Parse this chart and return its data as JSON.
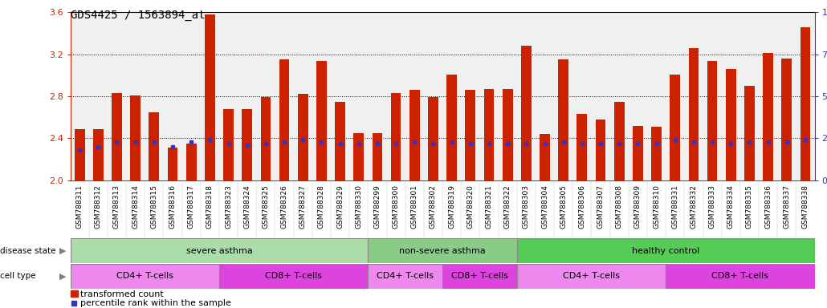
{
  "title": "GDS4425 / 1563894_at",
  "samples": [
    "GSM788311",
    "GSM788312",
    "GSM788313",
    "GSM788314",
    "GSM788315",
    "GSM788316",
    "GSM788317",
    "GSM788318",
    "GSM788323",
    "GSM788324",
    "GSM788325",
    "GSM788326",
    "GSM788327",
    "GSM788328",
    "GSM788329",
    "GSM788330",
    "GSM788299",
    "GSM788300",
    "GSM788301",
    "GSM788302",
    "GSM788319",
    "GSM788320",
    "GSM788321",
    "GSM788322",
    "GSM788303",
    "GSM788304",
    "GSM788305",
    "GSM788306",
    "GSM788307",
    "GSM788308",
    "GSM788309",
    "GSM788310",
    "GSM788331",
    "GSM788332",
    "GSM788333",
    "GSM788334",
    "GSM788335",
    "GSM788336",
    "GSM788337",
    "GSM788338"
  ],
  "transformed_count": [
    2.49,
    2.49,
    2.83,
    2.81,
    2.65,
    2.31,
    2.35,
    3.58,
    2.68,
    2.68,
    2.79,
    3.15,
    2.82,
    3.14,
    2.75,
    2.45,
    2.45,
    2.83,
    2.86,
    2.79,
    3.01,
    2.86,
    2.87,
    2.87,
    3.28,
    2.44,
    3.15,
    2.63,
    2.58,
    2.75,
    2.52,
    2.51,
    3.01,
    3.26,
    3.14,
    3.06,
    2.9,
    3.21,
    3.16,
    3.46
  ],
  "percentile_rank": [
    18,
    20,
    23,
    23,
    23,
    20,
    23,
    24,
    22,
    21,
    22,
    23,
    24,
    23,
    22,
    22,
    22,
    22,
    23,
    22,
    23,
    22,
    22,
    22,
    22,
    22,
    23,
    22,
    22,
    22,
    22,
    22,
    24,
    23,
    23,
    22,
    23,
    23,
    23,
    24
  ],
  "y_min": 2.0,
  "y_max": 3.6,
  "y_ticks": [
    2.0,
    2.4,
    2.8,
    3.2,
    3.6
  ],
  "right_y_ticks": [
    0,
    25,
    50,
    75,
    100
  ],
  "bar_color": "#cc2200",
  "blue_color": "#3333cc",
  "disease_groups": [
    {
      "label": "severe asthma",
      "start": 0,
      "end": 16,
      "color": "#aaddaa"
    },
    {
      "label": "non-severe asthma",
      "start": 16,
      "end": 24,
      "color": "#88cc88"
    },
    {
      "label": "healthy control",
      "start": 24,
      "end": 40,
      "color": "#55cc55"
    }
  ],
  "cell_groups": [
    {
      "label": "CD4+ T-cells",
      "start": 0,
      "end": 8,
      "color": "#ee88ee"
    },
    {
      "label": "CD8+ T-cells",
      "start": 8,
      "end": 16,
      "color": "#dd44dd"
    },
    {
      "label": "CD4+ T-cells",
      "start": 16,
      "end": 20,
      "color": "#ee88ee"
    },
    {
      "label": "CD8+ T-cells",
      "start": 20,
      "end": 24,
      "color": "#dd44dd"
    },
    {
      "label": "CD4+ T-cells",
      "start": 24,
      "end": 32,
      "color": "#ee88ee"
    },
    {
      "label": "CD8+ T-cells",
      "start": 32,
      "end": 40,
      "color": "#dd44dd"
    }
  ],
  "title_fontsize": 10,
  "tick_fontsize": 6.5,
  "label_fontsize": 8,
  "bar_width": 0.55,
  "plot_bg": "#e8e8e8",
  "xticklabel_bg": "#d4d4d4"
}
